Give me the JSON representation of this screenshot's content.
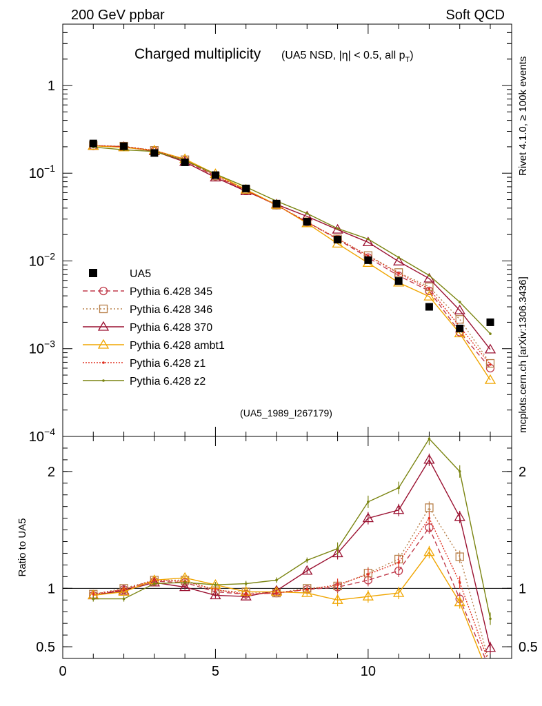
{
  "header": {
    "left": "200 GeV ppbar",
    "right": "Soft QCD"
  },
  "side_text": {
    "top": "Rivet 4.1.0, ≥ 100k events",
    "bottom": "mcplots.cern.ch [arXiv:1306.3436]"
  },
  "chart_data": {
    "type": "line",
    "title": "Charged multiplicity",
    "subtitle_main": "(UA5 NSD, |η| < 0.5, all p",
    "subtitle_sub": "T",
    "subtitle_end": ")",
    "analysis_id": "(UA5_1989_I267179)",
    "xlabel": "",
    "ylabel_ratio": "Ratio to UA5",
    "xlim": [
      0,
      14.7
    ],
    "ylim_main": [
      0.0001,
      5
    ],
    "ylim_ratio": [
      0.4,
      2.3
    ],
    "x_ticks": [
      0,
      5,
      10
    ],
    "y_ticks_main": [
      {
        "value": 1,
        "base": "1",
        "exp": ""
      },
      {
        "value": 0.1,
        "base": "10",
        "exp": "−1"
      },
      {
        "value": 0.01,
        "base": "10",
        "exp": "−2"
      },
      {
        "value": 0.001,
        "base": "10",
        "exp": "−3"
      },
      {
        "value": 0.0001,
        "base": "10",
        "exp": "−4"
      }
    ],
    "y_ticks_ratio": [
      {
        "value": 2,
        "label": "2"
      },
      {
        "value": 1,
        "label": "1"
      },
      {
        "value": 0.5,
        "label": "0.5"
      }
    ],
    "x": [
      1,
      2,
      3,
      4,
      5,
      6,
      7,
      8,
      9,
      10,
      11,
      12,
      13,
      14
    ],
    "data": {
      "name": "UA5",
      "values": [
        0.218,
        0.203,
        0.17,
        0.133,
        0.095,
        0.067,
        0.045,
        0.028,
        0.0175,
        0.0102,
        0.0059,
        0.003,
        0.0017,
        0.002
      ]
    },
    "series": [
      {
        "name": "Pythia 6.428 345",
        "color": "#c03a4a",
        "dash": "7,4",
        "marker": "circle",
        "ratio": [
          0.94,
          0.99,
          1.06,
          1.05,
          0.97,
          0.95,
          0.96,
          0.99,
          1.01,
          1.07,
          1.15,
          1.52,
          0.91,
          0.3
        ]
      },
      {
        "name": "Pythia 6.428 346",
        "color": "#b8804a",
        "dash": "2,3",
        "marker": "square",
        "ratio": [
          0.95,
          1.0,
          1.07,
          1.07,
          0.98,
          0.97,
          0.96,
          1.0,
          1.02,
          1.13,
          1.25,
          1.69,
          1.27,
          0.34
        ]
      },
      {
        "name": "Pythia 6.428 370",
        "color": "#9a1030",
        "dash": "",
        "marker": "triangle",
        "ratio": [
          0.94,
          0.98,
          1.05,
          1.01,
          0.94,
          0.93,
          0.98,
          1.15,
          1.3,
          1.6,
          1.67,
          2.1,
          1.61,
          0.49
        ]
      },
      {
        "name": "Pythia 6.428 ambt1",
        "color": "#f0a500",
        "dash": "",
        "marker": "triangle",
        "ratio": [
          0.94,
          0.97,
          1.07,
          1.09,
          1.03,
          0.97,
          0.97,
          0.96,
          0.9,
          0.93,
          0.96,
          1.31,
          0.88,
          0.22
        ]
      },
      {
        "name": "Pythia 6.428 z1",
        "color": "#e03020",
        "dash": "2,2",
        "marker": "dot",
        "ratio": [
          0.95,
          0.99,
          1.07,
          1.06,
          0.99,
          0.95,
          0.96,
          0.99,
          1.03,
          1.12,
          1.22,
          1.6,
          1.05,
          0.33
        ]
      },
      {
        "name": "Pythia 6.428 z2",
        "color": "#7a8410",
        "dash": "",
        "marker": "dot",
        "ratio": [
          0.91,
          0.91,
          1.04,
          1.05,
          1.03,
          1.04,
          1.07,
          1.24,
          1.34,
          1.74,
          1.86,
          2.28,
          2.0,
          0.74
        ]
      }
    ]
  }
}
